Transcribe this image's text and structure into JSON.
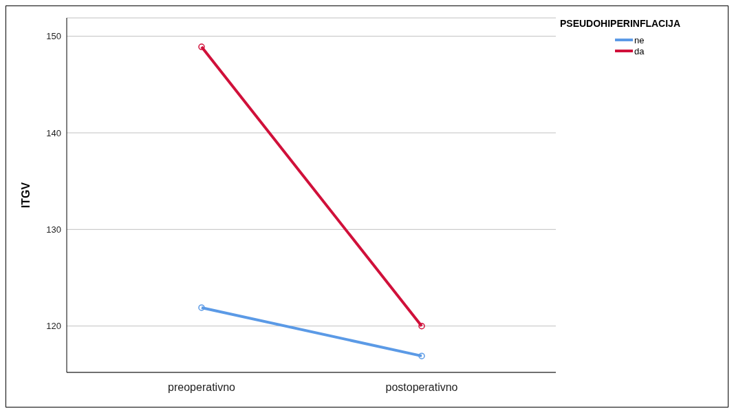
{
  "chart_data": {
    "type": "line",
    "ylabel": "ITGV",
    "legend_title": "PSEUDOHIPERINFLACIJA",
    "categories": [
      "preoperativno",
      "postoperativno"
    ],
    "series": [
      {
        "name": "ne",
        "color": "#5b9ae6",
        "values": [
          121.9,
          116.9
        ]
      },
      {
        "name": "da",
        "color": "#d0103a",
        "values": [
          148.9,
          120.0
        ]
      }
    ],
    "ylim": [
      115.2,
      151.9
    ],
    "yticks": [
      120,
      130,
      140,
      150
    ],
    "grid": "y",
    "legend": "top right",
    "marker": "circle",
    "line_style": "solid"
  }
}
